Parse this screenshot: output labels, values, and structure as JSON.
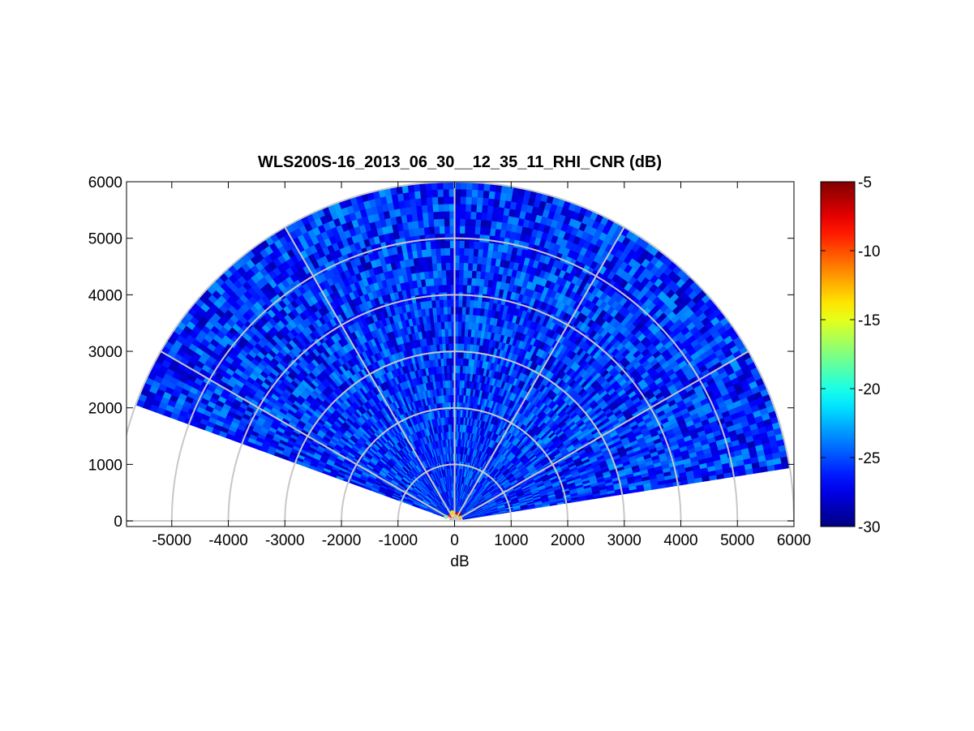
{
  "chart_data": {
    "type": "heatmap",
    "subtype": "polar-rhi-sector",
    "title": "WLS200S-16_2013_06_30__12_35_11_RHI_CNR (dB)",
    "xlabel": "dB",
    "ylabel": "",
    "xlim": [
      -5800,
      6000
    ],
    "ylim": [
      -100,
      6000
    ],
    "x_ticks": [
      -5000,
      -4000,
      -3000,
      -2000,
      -1000,
      0,
      1000,
      2000,
      3000,
      4000,
      5000,
      6000
    ],
    "x_tick_labels": [
      "-5000",
      "-4000",
      "-3000",
      "-2000",
      "-1000",
      "0",
      "1000",
      "2000",
      "3000",
      "4000",
      "5000",
      "6000"
    ],
    "y_ticks": [
      0,
      1000,
      2000,
      3000,
      4000,
      5000,
      6000
    ],
    "y_tick_labels": [
      "0",
      "1000",
      "2000",
      "3000",
      "4000",
      "5000",
      "6000"
    ],
    "polar_rings": [
      1000,
      2000,
      3000,
      4000,
      5000,
      6000
    ],
    "polar_spokes_deg": [
      0,
      30,
      60,
      90,
      120,
      150,
      180
    ],
    "scan": {
      "elevation_start_deg": 9,
      "elevation_end_deg": 160,
      "max_range": 6000,
      "range_gate_start": 150
    },
    "colorbar": {
      "colormap": "jet",
      "clim": [
        -30,
        -5
      ],
      "ticks": [
        -5,
        -10,
        -15,
        -20,
        -25,
        -30
      ],
      "tick_labels": [
        "-5",
        "-10",
        "-15",
        "-20",
        "-25",
        "-30"
      ]
    },
    "typical_value_range": [
      -29,
      -23
    ],
    "near_field_value_range": [
      -20,
      -5
    ],
    "grid": true
  }
}
